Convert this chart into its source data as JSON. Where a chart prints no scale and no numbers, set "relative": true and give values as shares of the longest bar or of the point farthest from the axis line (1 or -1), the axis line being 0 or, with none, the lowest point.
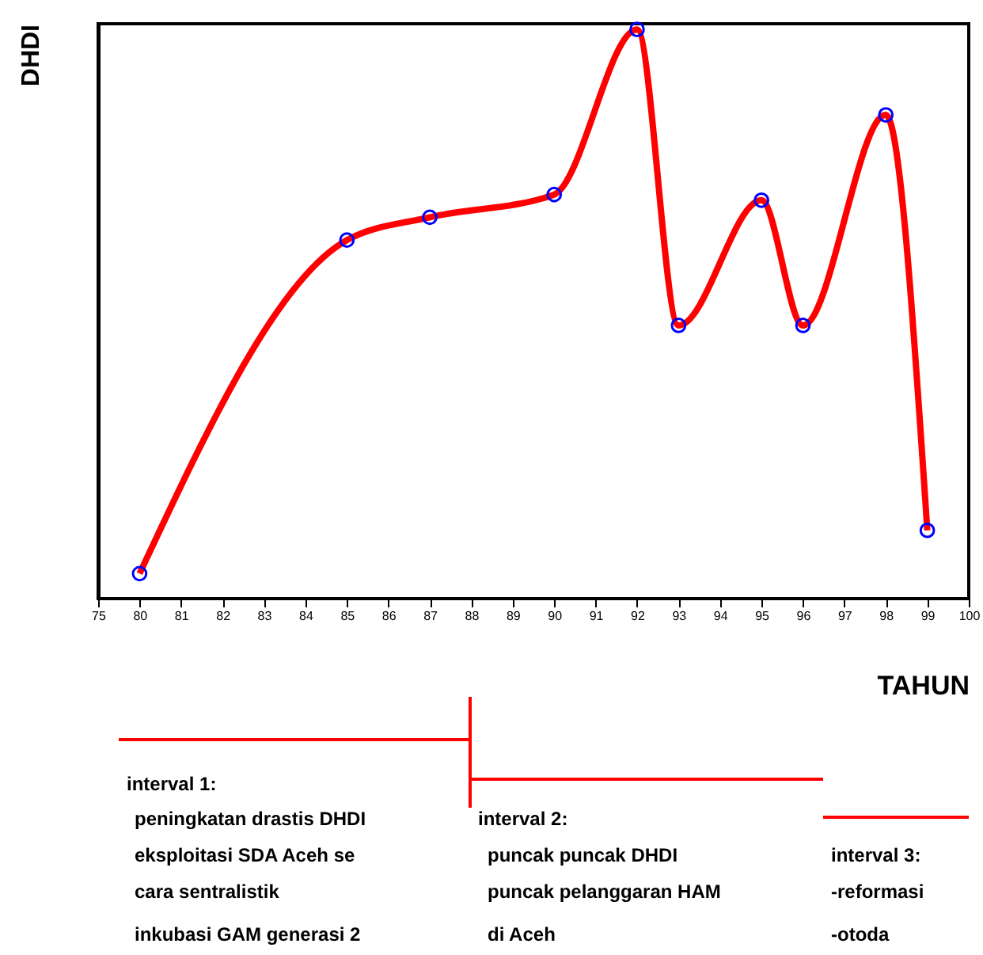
{
  "chart_data": {
    "type": "line",
    "xlabel": "TAHUN",
    "ylabel": "DHDI",
    "relative": true,
    "categories": [
      "75",
      "80",
      "81",
      "82",
      "83",
      "84",
      "85",
      "86",
      "87",
      "88",
      "89",
      "90",
      "91",
      "92",
      "93",
      "94",
      "95",
      "96",
      "97",
      "98",
      "99",
      "100"
    ],
    "series": [
      {
        "color": "#ff0000",
        "line_style": "solid",
        "marker": "none",
        "values": [
          null,
          0.044,
          null,
          null,
          null,
          null,
          0.63,
          null,
          0.67,
          null,
          null,
          0.71,
          null,
          1.0,
          0.48,
          null,
          0.7,
          0.48,
          null,
          0.85,
          0.12,
          null
        ]
      },
      {
        "type": "scatter",
        "color": "#0000ff",
        "marker": "circle",
        "values": [
          null,
          0.044,
          null,
          null,
          null,
          null,
          0.63,
          null,
          0.67,
          null,
          null,
          0.71,
          null,
          1.0,
          0.48,
          null,
          0.7,
          0.48,
          null,
          0.85,
          0.12,
          null
        ]
      }
    ],
    "grid": false,
    "annotations": [
      "interval 1:",
      "peningkatan drastis DHDI",
      "eksploitasi SDA Aceh se",
      "cara sentralistik",
      "inkubasi GAM generasi 2",
      "interval 2:",
      "puncak puncak DHDI",
      "puncak pelanggaran HAM",
      "di Aceh",
      "interval 3:",
      "-reformasi",
      "-otoda"
    ]
  }
}
